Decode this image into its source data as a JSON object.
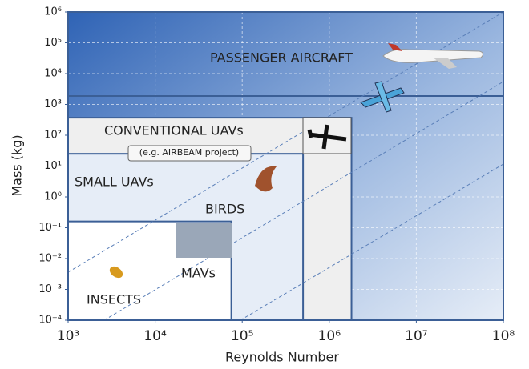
{
  "chart_data": {
    "type": "region",
    "x_label": "Reynolds Number",
    "y_label": "Mass (kg)",
    "xlog": true,
    "ylog": true,
    "grid": true,
    "xlim": [
      1000,
      100000000
    ],
    "ylim": [
      0.0001,
      1000000
    ],
    "xticks": [
      {
        "value": 1000,
        "label": "10³"
      },
      {
        "value": 10000,
        "label": "10⁴"
      },
      {
        "value": 100000,
        "label": "10⁵"
      },
      {
        "value": 1000000,
        "label": "10⁶"
      },
      {
        "value": 10000000,
        "label": "10⁷"
      },
      {
        "value": 100000000,
        "label": "10⁸"
      }
    ],
    "yticks": [
      {
        "value": 0.0001,
        "label": "10⁻⁴"
      },
      {
        "value": 0.001,
        "label": "10⁻³"
      },
      {
        "value": 0.01,
        "label": "10⁻²"
      },
      {
        "value": 0.1,
        "label": "10⁻¹"
      },
      {
        "value": 1,
        "label": "10⁰"
      },
      {
        "value": 10,
        "label": "10¹"
      },
      {
        "value": 100,
        "label": "10²"
      },
      {
        "value": 1000,
        "label": "10³"
      },
      {
        "value": 10000,
        "label": "10⁴"
      },
      {
        "value": 100000,
        "label": "10⁵"
      },
      {
        "value": 1000000,
        "label": "10⁶"
      }
    ],
    "regions": [
      {
        "name": "CONVENTIONAL UAVs",
        "x": [
          1000,
          1800000
        ],
        "y": [
          0.0001,
          370
        ],
        "color": "#efefef"
      },
      {
        "name": "SMALL UAVs",
        "x": [
          1000,
          500000
        ],
        "y": [
          0.0001,
          25
        ],
        "color": "#e6edf7"
      },
      {
        "name": "MAVs",
        "x": [
          1000,
          75000
        ],
        "y": [
          0.0001,
          0.16
        ],
        "color": "#ffffff"
      }
    ],
    "annotations": [
      "PASSENGER AIRCRAFT",
      "(e.g. AIRBEAM project)",
      "BIRDS",
      "INSECTS"
    ]
  }
}
